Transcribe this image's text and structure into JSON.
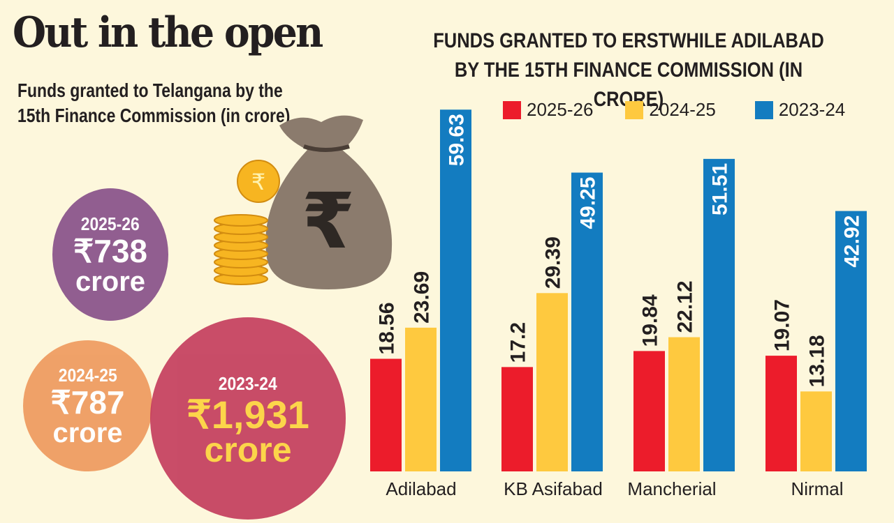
{
  "title": "Out in the open",
  "subtitle": "Funds granted to Telangana by the 15th Finance Commission (in crore)",
  "circles": [
    {
      "year": "2025-26",
      "amount": "₹738",
      "unit": "crore",
      "color": "#8e5a8e"
    },
    {
      "year": "2024-25",
      "amount": "₹787",
      "unit": "crore",
      "color": "#ef9d62"
    },
    {
      "year": "2023-24",
      "amount": "₹1,931",
      "unit": "crore",
      "color": "#c5405f"
    }
  ],
  "illustration": "money-bag-with-rupee-and-coins",
  "chart_data": {
    "type": "bar",
    "title": "FUNDS GRANTED TO ERSTWHILE ADILABAD BY THE 15TH FINANCE COMMISSION (IN CRORE)",
    "categories": [
      "Adilabad",
      "KB Asifabad",
      "Mancherial",
      "Nirmal"
    ],
    "series": [
      {
        "name": "2025-26",
        "color": "#ec1c2b",
        "values": [
          18.56,
          17.2,
          19.84,
          19.07
        ],
        "labels": [
          "18.56",
          "17.2",
          "19.84",
          "19.07"
        ]
      },
      {
        "name": "2024-25",
        "color": "#fec93f",
        "values": [
          23.69,
          29.39,
          22.12,
          13.18
        ],
        "labels": [
          "23.69",
          "29.39",
          "22.12",
          "13.18"
        ]
      },
      {
        "name": "2023-24",
        "color": "#137cc0",
        "values": [
          59.63,
          49.25,
          51.51,
          42.92
        ],
        "labels": [
          "59.63",
          "49.25",
          "51.51",
          "42.92"
        ]
      }
    ],
    "legend": "top",
    "grid": false,
    "ylim": [
      0,
      60
    ]
  }
}
